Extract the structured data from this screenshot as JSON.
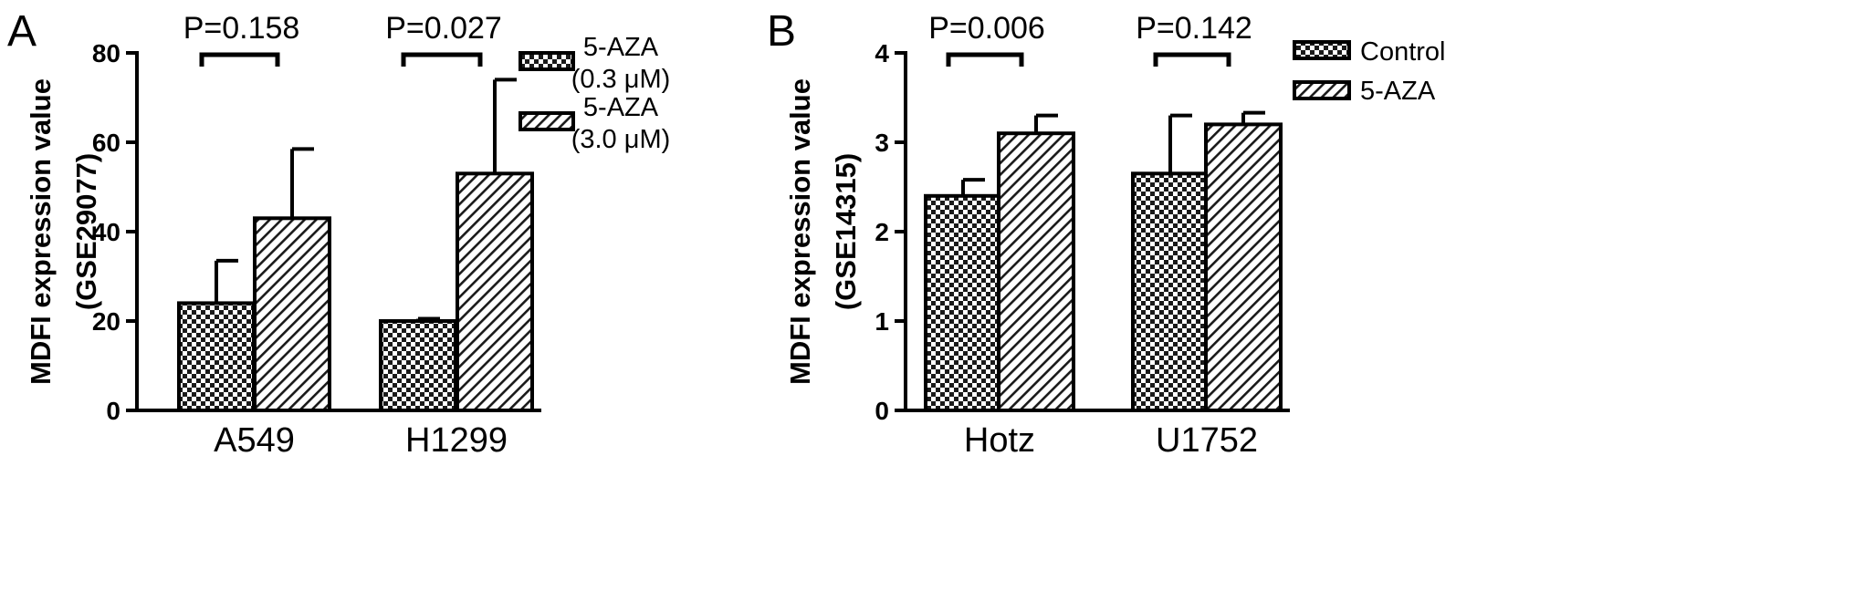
{
  "chart_data": [
    {
      "panel": "A",
      "type": "bar",
      "ylabel": "MDFI expression value",
      "ylabel2": "(GSE29077)",
      "ylim": [
        0,
        80
      ],
      "yticks": [
        "0",
        "20",
        "40",
        "60",
        "80"
      ],
      "categories": [
        "A549",
        "H1299"
      ],
      "series": [
        {
          "name": "5-AZA (0.3 μM)",
          "name_line1": "5-AZA",
          "name_line2": "(0.3 μM)",
          "pattern": "checker",
          "values": [
            24,
            20
          ],
          "errors": [
            9.5,
            0.5
          ]
        },
        {
          "name": "5-AZA (3.0 μM)",
          "name_line1": "5-AZA",
          "name_line2": "(3.0 μM)",
          "pattern": "hatch",
          "values": [
            43,
            53
          ],
          "errors": [
            15.5,
            21
          ]
        }
      ],
      "annotations": [
        "P=0.158",
        "P=0.027"
      ],
      "legend_position": "right"
    },
    {
      "panel": "B",
      "type": "bar",
      "ylabel": "MDFI expression value",
      "ylabel2": "(GSE14315)",
      "ylim": [
        0,
        4
      ],
      "yticks": [
        "0",
        "1",
        "2",
        "3",
        "4"
      ],
      "categories": [
        "Hotz",
        "U1752"
      ],
      "series": [
        {
          "name": "Control",
          "name_line1": "Control",
          "name_line2": "",
          "pattern": "checker",
          "values": [
            2.4,
            2.65
          ],
          "errors": [
            0.18,
            0.65
          ]
        },
        {
          "name": "5-AZA",
          "name_line1": "5-AZA",
          "name_line2": "",
          "pattern": "hatch",
          "values": [
            3.1,
            3.2
          ],
          "errors": [
            0.2,
            0.13
          ]
        }
      ],
      "annotations": [
        "P=0.006",
        "P=0.142"
      ],
      "legend_position": "right"
    }
  ],
  "colors": {
    "axis": "#000000",
    "bar_fill": "#ffffff",
    "pattern_ink": "#1a1a1a"
  }
}
